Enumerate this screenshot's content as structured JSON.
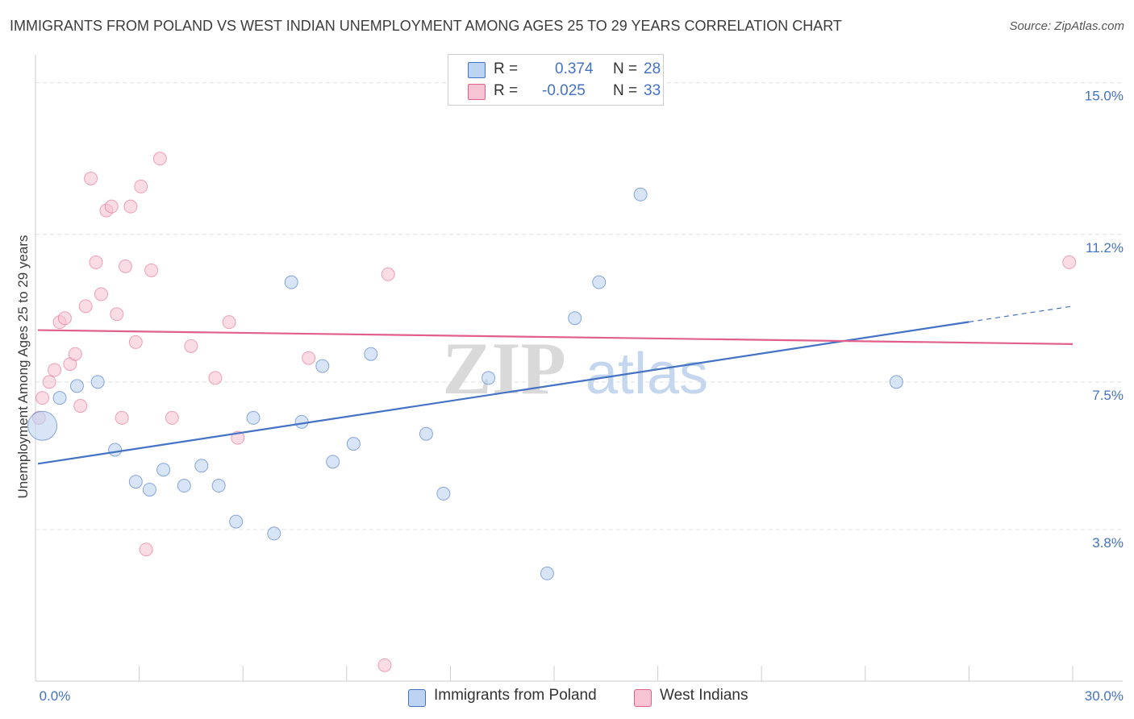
{
  "title": "IMMIGRANTS FROM POLAND VS WEST INDIAN UNEMPLOYMENT AMONG AGES 25 TO 29 YEARS CORRELATION CHART",
  "source": "Source: ZipAtlas.com",
  "watermark": {
    "zip": "ZIP",
    "atlas": "atlas"
  },
  "legend": {
    "rows": [
      {
        "r_label": "R =",
        "r_value": "0.374",
        "n_label": "N =",
        "n_value": "28"
      },
      {
        "r_label": "R =",
        "r_value": "-0.025",
        "n_label": "N =",
        "n_value": "33"
      }
    ]
  },
  "bottom_legend": {
    "poland": "Immigrants from Poland",
    "west_indians": "West Indians"
  },
  "chart_data": {
    "type": "scatter",
    "title": "IMMIGRANTS FROM POLAND VS WEST INDIAN UNEMPLOYMENT AMONG AGES 25 TO 29 YEARS CORRELATION CHART",
    "xlabel": "",
    "ylabel": "Unemployment Among Ages 25 to 29 years",
    "xlim": [
      0,
      30
    ],
    "ylim": [
      0,
      15.5
    ],
    "x_tick_labels": [
      "0.0%",
      "30.0%"
    ],
    "y_ticks": [
      3.8,
      7.5,
      11.2,
      15.0
    ],
    "y_tick_labels": [
      "3.8%",
      "7.5%",
      "11.2%",
      "15.0%"
    ],
    "colors": {
      "poland": "#4472c4",
      "poland_fill": "#bcd3f2",
      "west": "#e0608a",
      "west_fill": "#f7c4d4"
    },
    "series": [
      {
        "name": "Immigrants from Poland",
        "R": 0.374,
        "N": 28,
        "trend": {
          "x0": 0,
          "y0": 5.45,
          "x1": 30,
          "y1": 9.4,
          "solid_until": 27
        },
        "points": [
          {
            "x": 0.2,
            "y": 6.4,
            "big": true
          },
          {
            "x": 0.7,
            "y": 7.1
          },
          {
            "x": 1.2,
            "y": 7.4
          },
          {
            "x": 1.8,
            "y": 7.5
          },
          {
            "x": 2.3,
            "y": 5.8
          },
          {
            "x": 2.9,
            "y": 5.0
          },
          {
            "x": 3.3,
            "y": 4.8
          },
          {
            "x": 3.7,
            "y": 5.3
          },
          {
            "x": 4.3,
            "y": 4.9
          },
          {
            "x": 4.8,
            "y": 5.4
          },
          {
            "x": 5.3,
            "y": 4.9
          },
          {
            "x": 5.8,
            "y": 4.0
          },
          {
            "x": 6.3,
            "y": 6.6
          },
          {
            "x": 6.9,
            "y": 3.7
          },
          {
            "x": 7.4,
            "y": 10.0
          },
          {
            "x": 7.7,
            "y": 6.5
          },
          {
            "x": 8.3,
            "y": 7.9
          },
          {
            "x": 8.6,
            "y": 5.5
          },
          {
            "x": 9.2,
            "y": 5.95
          },
          {
            "x": 9.7,
            "y": 8.2
          },
          {
            "x": 11.3,
            "y": 6.2
          },
          {
            "x": 11.8,
            "y": 4.7
          },
          {
            "x": 13.1,
            "y": 7.6
          },
          {
            "x": 14.8,
            "y": 2.7
          },
          {
            "x": 15.6,
            "y": 9.1
          },
          {
            "x": 16.3,
            "y": 10.0
          },
          {
            "x": 17.5,
            "y": 12.2
          },
          {
            "x": 24.9,
            "y": 7.5
          }
        ]
      },
      {
        "name": "West Indians",
        "R": -0.025,
        "N": 33,
        "trend": {
          "x0": 0,
          "y0": 8.8,
          "x1": 30,
          "y1": 8.45
        },
        "points": [
          {
            "x": 0.1,
            "y": 6.6
          },
          {
            "x": 0.2,
            "y": 7.1
          },
          {
            "x": 0.4,
            "y": 7.5
          },
          {
            "x": 0.55,
            "y": 7.8
          },
          {
            "x": 0.7,
            "y": 9.0
          },
          {
            "x": 0.85,
            "y": 9.1
          },
          {
            "x": 1.0,
            "y": 7.95
          },
          {
            "x": 1.15,
            "y": 8.2
          },
          {
            "x": 1.3,
            "y": 6.9
          },
          {
            "x": 1.45,
            "y": 9.4
          },
          {
            "x": 1.6,
            "y": 12.6
          },
          {
            "x": 1.75,
            "y": 10.5
          },
          {
            "x": 1.9,
            "y": 9.7
          },
          {
            "x": 2.05,
            "y": 11.8
          },
          {
            "x": 2.2,
            "y": 11.9
          },
          {
            "x": 2.35,
            "y": 9.2
          },
          {
            "x": 2.5,
            "y": 6.6
          },
          {
            "x": 2.6,
            "y": 10.4
          },
          {
            "x": 2.75,
            "y": 11.9
          },
          {
            "x": 2.9,
            "y": 8.5
          },
          {
            "x": 3.05,
            "y": 12.4
          },
          {
            "x": 3.2,
            "y": 3.3
          },
          {
            "x": 3.35,
            "y": 10.3
          },
          {
            "x": 3.6,
            "y": 13.1
          },
          {
            "x": 3.95,
            "y": 6.6
          },
          {
            "x": 4.5,
            "y": 8.4
          },
          {
            "x": 5.2,
            "y": 7.6
          },
          {
            "x": 5.6,
            "y": 9.0
          },
          {
            "x": 5.85,
            "y": 6.1
          },
          {
            "x": 7.9,
            "y": 8.1
          },
          {
            "x": 10.1,
            "y": 0.4
          },
          {
            "x": 10.2,
            "y": 10.2
          },
          {
            "x": 29.9,
            "y": 10.5
          }
        ]
      }
    ]
  }
}
